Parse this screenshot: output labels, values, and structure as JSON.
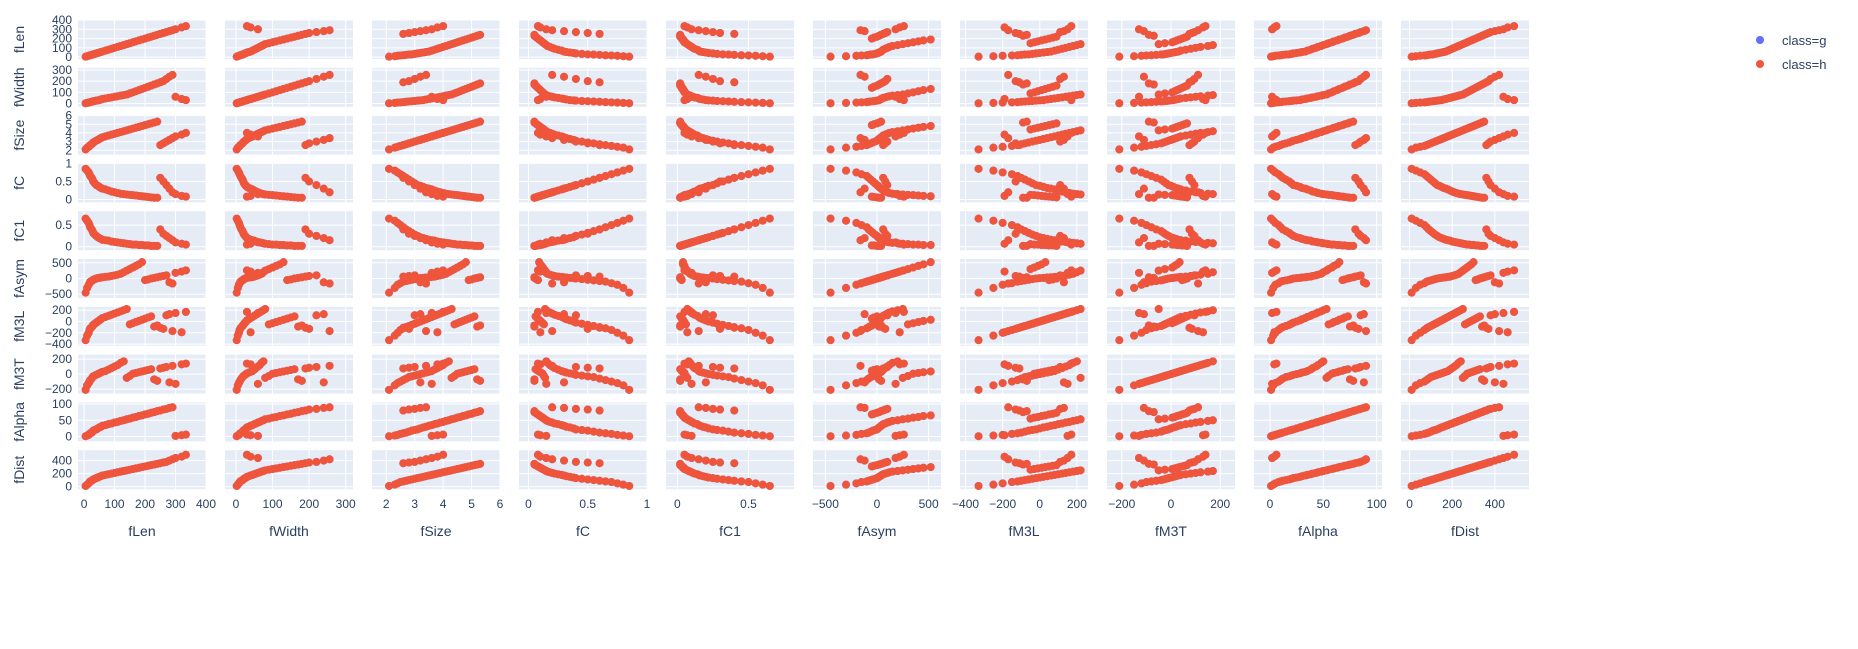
{
  "chart_data": {
    "type": "scatter",
    "variables": [
      "fLen",
      "fWidth",
      "fSize",
      "fC",
      "fC1",
      "fAsym",
      "fM3L",
      "fM3T",
      "fAlpha",
      "fDist"
    ],
    "ranges": {
      "fLen": [
        -20,
        400
      ],
      "fWidth": [
        -30,
        320
      ],
      "fSize": [
        1.5,
        6
      ],
      "fC": [
        -0.08,
        1
      ],
      "fC1": [
        -0.08,
        0.82
      ],
      "fAsym": [
        -620,
        620
      ],
      "fM3L": [
        -430,
        260
      ],
      "fM3T": [
        -260,
        260
      ],
      "fAlpha": [
        -15,
        105
      ],
      "fDist": [
        -40,
        560
      ]
    },
    "ticks": {
      "fLen": [
        0,
        100,
        200,
        300,
        400
      ],
      "fWidth": [
        0,
        100,
        200,
        300
      ],
      "fSize": [
        2,
        3,
        4,
        5,
        6
      ],
      "fC": [
        0,
        0.5,
        1
      ],
      "fC1": [
        0,
        0.5
      ],
      "fAsym": [
        -500,
        0,
        500
      ],
      "fM3L": [
        -400,
        -200,
        0,
        200
      ],
      "fM3T": [
        -200,
        0,
        200
      ],
      "fAlpha": [
        0,
        50,
        100
      ],
      "fDist": [
        0,
        200,
        400
      ]
    },
    "tick_labels": {
      "fLen": [
        "0",
        "100",
        "200",
        "300",
        "400"
      ],
      "fWidth": [
        "0",
        "100",
        "200",
        "300"
      ],
      "fSize": [
        "2",
        "3",
        "4",
        "5",
        "6"
      ],
      "fC": [
        "0",
        "0.5",
        "1"
      ],
      "fC1": [
        "0",
        "0.5"
      ],
      "fAsym": [
        "−500",
        "0",
        "500"
      ],
      "fM3L": [
        "−400",
        "−200",
        "0",
        "200"
      ],
      "fM3T": [
        "−200",
        "0",
        "200"
      ],
      "fAlpha": [
        "0",
        "50",
        "100"
      ],
      "fDist": [
        "0",
        "200",
        "400"
      ]
    },
    "y_tick_labels": {
      "fLen": [
        "0",
        "100",
        "200",
        "300",
        "400"
      ],
      "fWidth": [
        "0",
        "100",
        "200",
        "300"
      ],
      "fSize": [
        "2",
        "3",
        "4",
        "5",
        "6"
      ],
      "fC": [
        "0",
        "0.5",
        "1"
      ],
      "fC1": [
        "0",
        "0.5"
      ],
      "fAsym": [
        "−500",
        "0",
        "500"
      ],
      "fM3L": [
        "−400",
        "−200",
        "0",
        "200"
      ],
      "fM3T": [
        "−200",
        "0",
        "200"
      ],
      "fAlpha": [
        "0",
        "50",
        "100"
      ],
      "fDist": [
        "0",
        "200",
        "400"
      ]
    },
    "series": [
      {
        "name": "class=g",
        "color": "#636efa"
      },
      {
        "name": "class=h",
        "color": "#ef553b"
      }
    ],
    "sample_points": {
      "fLen": [
        5,
        10,
        15,
        18,
        20,
        25,
        28,
        30,
        35,
        40,
        45,
        50,
        55,
        60,
        70,
        80,
        90,
        100,
        110,
        120,
        130,
        140,
        150,
        160,
        170,
        180,
        190,
        200,
        210,
        220,
        230,
        240,
        250,
        260,
        270,
        280,
        290,
        300,
        320,
        334
      ],
      "fWidth": [
        2,
        5,
        8,
        10,
        12,
        15,
        18,
        20,
        22,
        25,
        28,
        30,
        35,
        40,
        45,
        50,
        55,
        60,
        65,
        70,
        75,
        80,
        90,
        100,
        110,
        120,
        130,
        140,
        150,
        160,
        170,
        180,
        190,
        200,
        220,
        240,
        256,
        60,
        40,
        30
      ],
      "fSize": [
        2.1,
        2.3,
        2.4,
        2.5,
        2.6,
        2.7,
        2.8,
        2.9,
        3.0,
        3.1,
        3.2,
        3.3,
        3.4,
        3.5,
        3.6,
        3.7,
        3.8,
        3.9,
        4.0,
        4.1,
        4.2,
        4.3,
        4.4,
        4.5,
        4.6,
        4.7,
        4.8,
        4.9,
        5.0,
        5.1,
        5.2,
        5.3,
        2.6,
        2.8,
        3.0,
        3.2,
        3.4,
        3.6,
        3.8,
        4.0
      ],
      "fC": [
        0.85,
        0.8,
        0.75,
        0.7,
        0.65,
        0.6,
        0.55,
        0.5,
        0.45,
        0.4,
        0.38,
        0.35,
        0.32,
        0.3,
        0.28,
        0.25,
        0.22,
        0.2,
        0.18,
        0.16,
        0.15,
        0.14,
        0.13,
        0.12,
        0.11,
        0.1,
        0.09,
        0.08,
        0.07,
        0.06,
        0.05,
        0.05,
        0.6,
        0.5,
        0.4,
        0.3,
        0.2,
        0.15,
        0.1,
        0.08
      ],
      "fC1": [
        0.65,
        0.6,
        0.55,
        0.5,
        0.45,
        0.4,
        0.36,
        0.32,
        0.28,
        0.25,
        0.22,
        0.2,
        0.18,
        0.16,
        0.15,
        0.14,
        0.12,
        0.11,
        0.1,
        0.09,
        0.08,
        0.07,
        0.06,
        0.05,
        0.05,
        0.04,
        0.04,
        0.03,
        0.03,
        0.02,
        0.02,
        0.02,
        0.4,
        0.3,
        0.25,
        0.2,
        0.15,
        0.1,
        0.07,
        0.05
      ],
      "fAsym": [
        -450,
        -300,
        -200,
        -150,
        -100,
        -80,
        -60,
        -40,
        -20,
        0,
        10,
        20,
        30,
        40,
        50,
        60,
        80,
        100,
        120,
        150,
        200,
        250,
        300,
        350,
        400,
        450,
        520,
        -50,
        -30,
        0,
        20,
        40,
        60,
        80,
        100,
        -120,
        -160,
        180,
        220,
        260
      ],
      "fM3L": [
        -330,
        -250,
        -200,
        -150,
        -120,
        -100,
        -80,
        -60,
        -40,
        -20,
        0,
        20,
        40,
        60,
        80,
        100,
        120,
        140,
        160,
        180,
        200,
        220,
        -50,
        -30,
        -10,
        10,
        30,
        50,
        70,
        90,
        -90,
        -70,
        -110,
        -130,
        110,
        130,
        -170,
        150,
        -190,
        170
      ],
      "fM3T": [
        -210,
        -150,
        -120,
        -100,
        -80,
        -60,
        -40,
        -30,
        -20,
        -10,
        0,
        10,
        20,
        30,
        40,
        60,
        80,
        100,
        120,
        150,
        170,
        -50,
        -25,
        5,
        15,
        25,
        35,
        45,
        55,
        65,
        -70,
        -90,
        75,
        85,
        95,
        -110,
        110,
        -130,
        130,
        140
      ],
      "fAlpha": [
        1,
        3,
        5,
        8,
        10,
        12,
        15,
        18,
        20,
        22,
        25,
        28,
        30,
        33,
        35,
        38,
        40,
        43,
        45,
        48,
        50,
        53,
        55,
        58,
        60,
        63,
        65,
        68,
        70,
        73,
        75,
        78,
        80,
        83,
        85,
        88,
        90,
        2,
        4,
        6
      ],
      "fDist": [
        10,
        30,
        50,
        70,
        80,
        90,
        100,
        110,
        120,
        130,
        140,
        150,
        160,
        170,
        180,
        190,
        200,
        210,
        220,
        230,
        240,
        250,
        260,
        270,
        280,
        290,
        300,
        310,
        320,
        330,
        340,
        350,
        360,
        370,
        380,
        400,
        420,
        440,
        460,
        490
      ]
    },
    "legend_position": "top-right",
    "grid": true
  },
  "legend": {
    "items": [
      {
        "label": "class=g",
        "color": "#636efa"
      },
      {
        "label": "class=h",
        "color": "#ef553b"
      }
    ]
  }
}
